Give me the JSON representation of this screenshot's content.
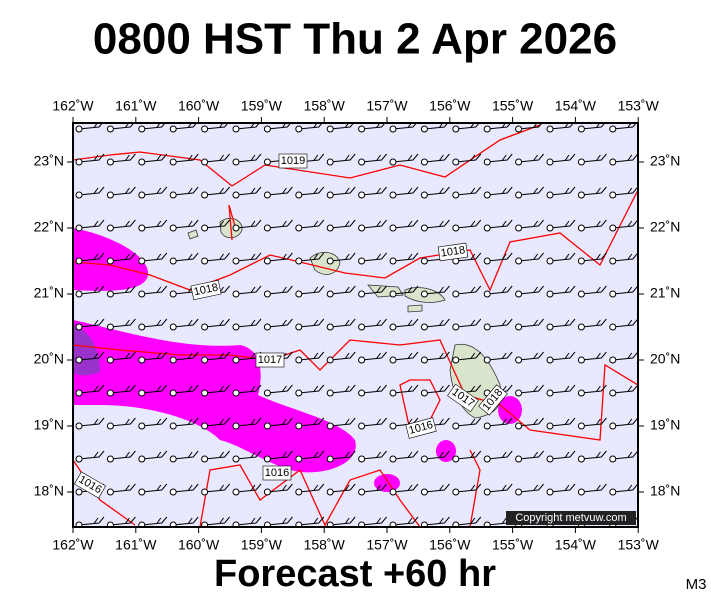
{
  "title": "0800 HST Thu 2 Apr 2026",
  "footer": "Forecast +60 hr",
  "model": "M3",
  "copyright": "Copyright metvuw.com",
  "map": {
    "lon_labels": [
      "162˚W",
      "161˚W",
      "160˚W",
      "159˚W",
      "158˚W",
      "157˚W",
      "156˚W",
      "155˚W",
      "154˚W",
      "153˚W"
    ],
    "lat_labels": [
      "23˚N",
      "22˚N",
      "21˚N",
      "20˚N",
      "19˚N",
      "18˚N"
    ],
    "isobar_labels": [
      "1019",
      "1018",
      "1018",
      "1017",
      "1017",
      "1018",
      "1016",
      "1016",
      "1016"
    ]
  }
}
